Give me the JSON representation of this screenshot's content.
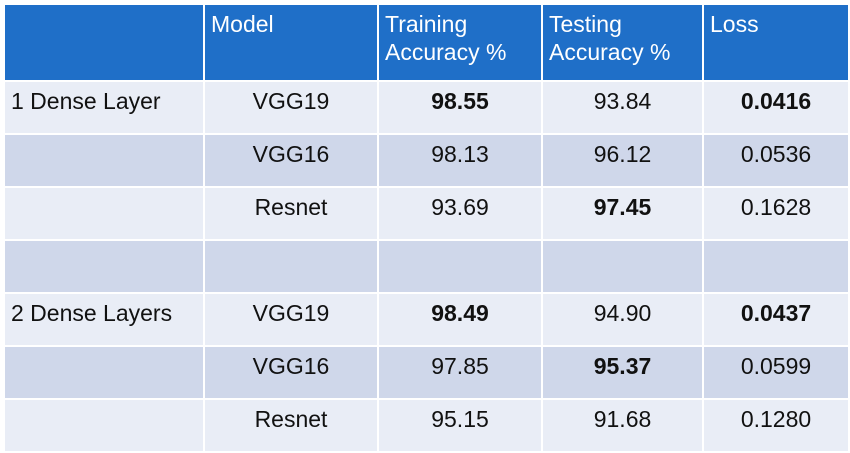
{
  "table": {
    "headers": [
      "",
      "Model",
      "Training Accuracy %",
      "Testing Accuracy %",
      "Loss"
    ],
    "rows": [
      {
        "group": "1 Dense Layer",
        "model": "VGG19",
        "train": "98.55",
        "test": "93.84",
        "loss": "0.0416",
        "bold": [
          "train",
          "loss"
        ]
      },
      {
        "group": "",
        "model": "VGG16",
        "train": "98.13",
        "test": "96.12",
        "loss": "0.0536",
        "bold": []
      },
      {
        "group": "",
        "model": "Resnet",
        "train": "93.69",
        "test": "97.45",
        "loss": "0.1628",
        "bold": [
          "test"
        ]
      },
      {
        "group": "",
        "model": "",
        "train": "",
        "test": "",
        "loss": "",
        "bold": []
      },
      {
        "group": "2 Dense Layers",
        "model": "VGG19",
        "train": "98.49",
        "test": "94.90",
        "loss": "0.0437",
        "bold": [
          "train",
          "loss"
        ]
      },
      {
        "group": "",
        "model": "VGG16",
        "train": "97.85",
        "test": "95.37",
        "loss": "0.0599",
        "bold": [
          "test"
        ]
      },
      {
        "group": "",
        "model": "Resnet",
        "train": "95.15",
        "test": "91.68",
        "loss": "0.1280",
        "bold": []
      }
    ]
  },
  "colors": {
    "header_bg": "#1f6fc8",
    "row_light": "#e9edf6",
    "row_dark": "#cfd7ea",
    "header_text": "#ffffff"
  }
}
